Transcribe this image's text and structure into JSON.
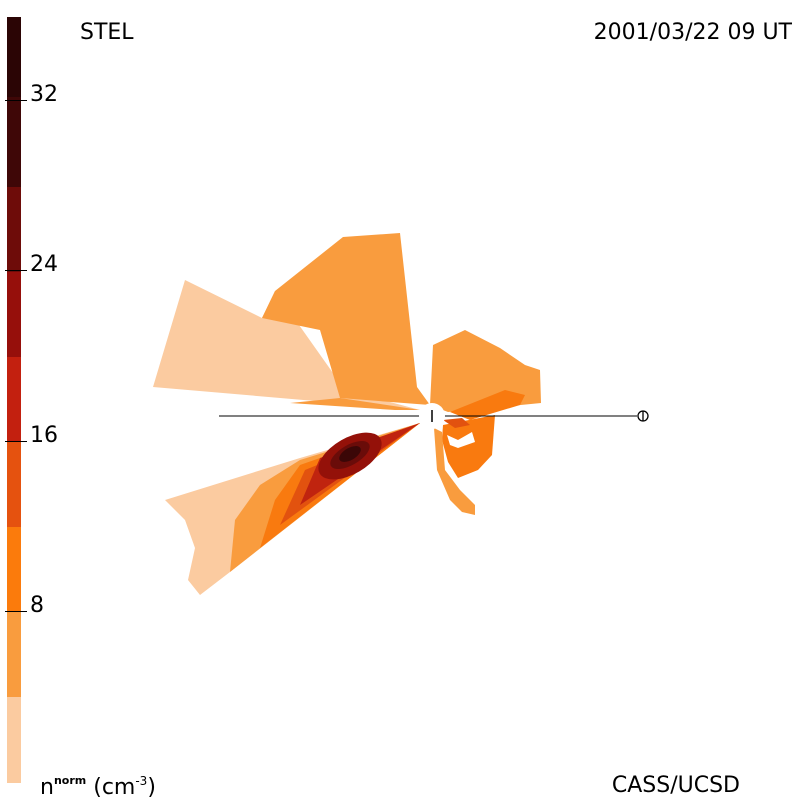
{
  "header": {
    "station": "STEL",
    "datetime": "2001/03/22 09 UT"
  },
  "footer": {
    "credit": "CASS/UCSD",
    "units_base": "n",
    "units_sup": "norm",
    "units_paren": "(cm",
    "units_exp": "-3",
    "units_close": ")"
  },
  "colorbar": {
    "ticks": [
      "8",
      "16",
      "24",
      "32"
    ],
    "colors": [
      "#fbcba0",
      "#f99c3e",
      "#f97a0f",
      "#e2520f",
      "#c0240f",
      "#941109",
      "#6a0c09",
      "#3b0707"
    ]
  },
  "map": {
    "earth_symbol": "⊕",
    "sun_marker": "sun"
  }
}
